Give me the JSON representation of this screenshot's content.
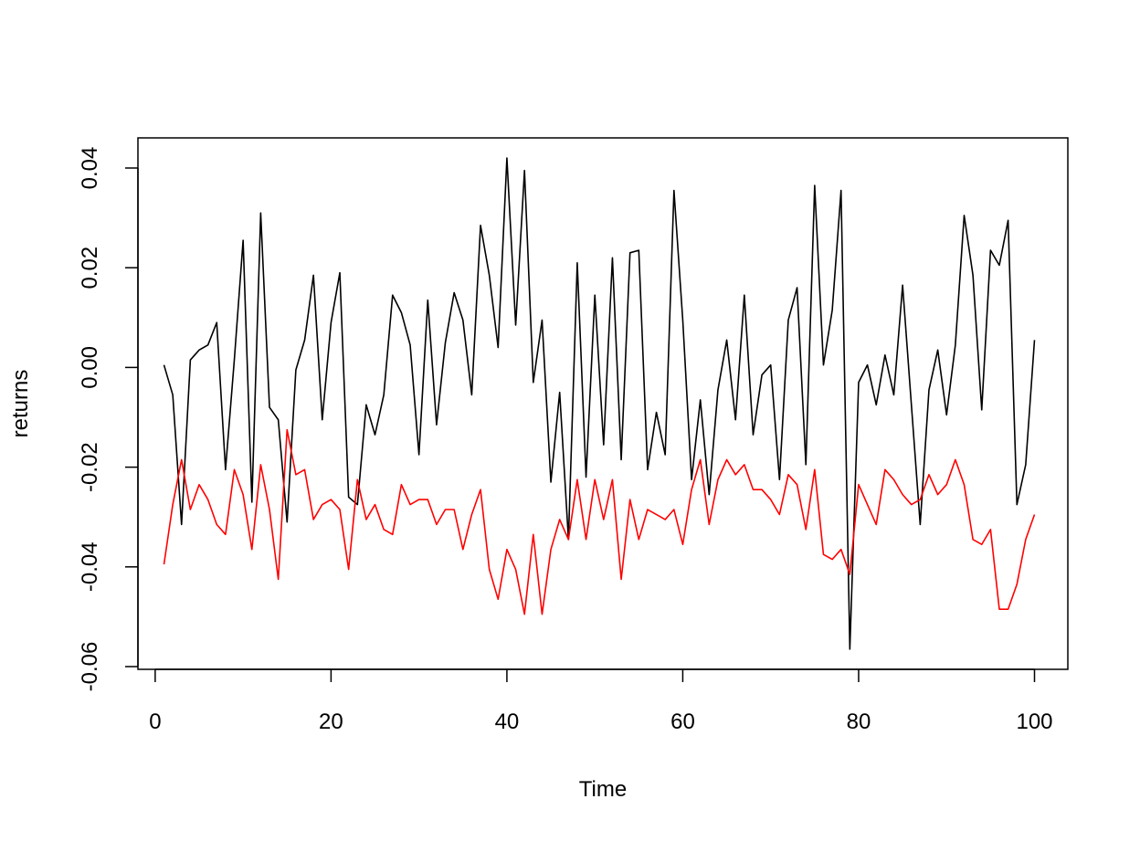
{
  "chart_data": {
    "type": "line",
    "xlabel": "Time",
    "ylabel": "returns",
    "xlim": [
      1,
      100
    ],
    "ylim": [
      -0.06,
      0.04
    ],
    "x_ticks": [
      0,
      20,
      40,
      60,
      80,
      100
    ],
    "x_tick_labels": [
      "0",
      "20",
      "40",
      "60",
      "80",
      "100"
    ],
    "y_ticks": [
      -0.06,
      -0.04,
      -0.02,
      0.0,
      0.02,
      0.04
    ],
    "y_tick_labels": [
      "-0.06",
      "-0.04",
      "-0.02",
      "0.00",
      "0.02",
      "0.04"
    ],
    "grid": false,
    "x": [
      1,
      2,
      3,
      4,
      5,
      6,
      7,
      8,
      9,
      10,
      11,
      12,
      13,
      14,
      15,
      16,
      17,
      18,
      19,
      20,
      21,
      22,
      23,
      24,
      25,
      26,
      27,
      28,
      29,
      30,
      31,
      32,
      33,
      34,
      35,
      36,
      37,
      38,
      39,
      40,
      41,
      42,
      43,
      44,
      45,
      46,
      47,
      48,
      49,
      50,
      51,
      52,
      53,
      54,
      55,
      56,
      57,
      58,
      59,
      60,
      61,
      62,
      63,
      64,
      65,
      66,
      67,
      68,
      69,
      70,
      71,
      72,
      73,
      74,
      75,
      76,
      77,
      78,
      79,
      80,
      81,
      82,
      83,
      84,
      85,
      86,
      87,
      88,
      89,
      90,
      91,
      92,
      93,
      94,
      95,
      96,
      97,
      98,
      99,
      100
    ],
    "series": [
      {
        "color": "#000000",
        "values": [
          0.0005,
          -0.0055,
          -0.0315,
          0.0015,
          0.0035,
          0.0045,
          0.009,
          -0.0205,
          0.0015,
          0.0255,
          -0.027,
          0.031,
          -0.008,
          -0.0105,
          -0.031,
          -0.0005,
          0.0055,
          0.0185,
          -0.0105,
          0.009,
          0.019,
          -0.026,
          -0.0275,
          -0.0075,
          -0.0135,
          -0.0055,
          0.0145,
          0.011,
          0.0045,
          -0.0175,
          0.0135,
          -0.0115,
          0.005,
          0.015,
          0.0095,
          -0.0055,
          0.0285,
          0.0185,
          0.004,
          0.042,
          0.0085,
          0.0395,
          -0.003,
          0.0095,
          -0.023,
          -0.005,
          -0.0345,
          0.021,
          -0.022,
          0.0145,
          -0.0155,
          0.022,
          -0.0185,
          0.023,
          0.0235,
          -0.0205,
          -0.009,
          -0.0175,
          0.0355,
          0.0095,
          -0.0225,
          -0.0065,
          -0.0255,
          -0.0045,
          0.0055,
          -0.0105,
          0.0145,
          -0.0135,
          -0.0015,
          0.0005,
          -0.0225,
          0.0095,
          0.016,
          -0.0195,
          0.0365,
          0.0005,
          0.0115,
          0.0355,
          -0.0565,
          -0.003,
          0.0005,
          -0.0075,
          0.0025,
          -0.0055,
          0.0165,
          -0.0075,
          -0.0315,
          -0.0045,
          0.0035,
          -0.0095,
          0.0045,
          0.0305,
          0.0185,
          -0.0085,
          0.0235,
          0.0205,
          0.0295,
          -0.0275,
          -0.0195,
          0.0055
        ]
      },
      {
        "color": "#ff0000",
        "values": [
          -0.0395,
          -0.0275,
          -0.0185,
          -0.0285,
          -0.0235,
          -0.0265,
          -0.0315,
          -0.0335,
          -0.0205,
          -0.0255,
          -0.0365,
          -0.0195,
          -0.0285,
          -0.0425,
          -0.0125,
          -0.0215,
          -0.0205,
          -0.0305,
          -0.0275,
          -0.0265,
          -0.0285,
          -0.0405,
          -0.0225,
          -0.0305,
          -0.0275,
          -0.0325,
          -0.0335,
          -0.0235,
          -0.0275,
          -0.0265,
          -0.0265,
          -0.0315,
          -0.0285,
          -0.0285,
          -0.0365,
          -0.0295,
          -0.0245,
          -0.0405,
          -0.0465,
          -0.0365,
          -0.0405,
          -0.0495,
          -0.0335,
          -0.0495,
          -0.0365,
          -0.0305,
          -0.0345,
          -0.0225,
          -0.0345,
          -0.0225,
          -0.0305,
          -0.0225,
          -0.0425,
          -0.0265,
          -0.0345,
          -0.0285,
          -0.0295,
          -0.0305,
          -0.0285,
          -0.0355,
          -0.0245,
          -0.0185,
          -0.0315,
          -0.0225,
          -0.0185,
          -0.0215,
          -0.0195,
          -0.0245,
          -0.0245,
          -0.0265,
          -0.0295,
          -0.0215,
          -0.0235,
          -0.0325,
          -0.0205,
          -0.0375,
          -0.0385,
          -0.0365,
          -0.0415,
          -0.0235,
          -0.0275,
          -0.0315,
          -0.0205,
          -0.0225,
          -0.0255,
          -0.0275,
          -0.0265,
          -0.0215,
          -0.0255,
          -0.0235,
          -0.0185,
          -0.0235,
          -0.0345,
          -0.0355,
          -0.0325,
          -0.0485,
          -0.0485,
          -0.0435,
          -0.0345,
          -0.0295
        ]
      }
    ]
  }
}
